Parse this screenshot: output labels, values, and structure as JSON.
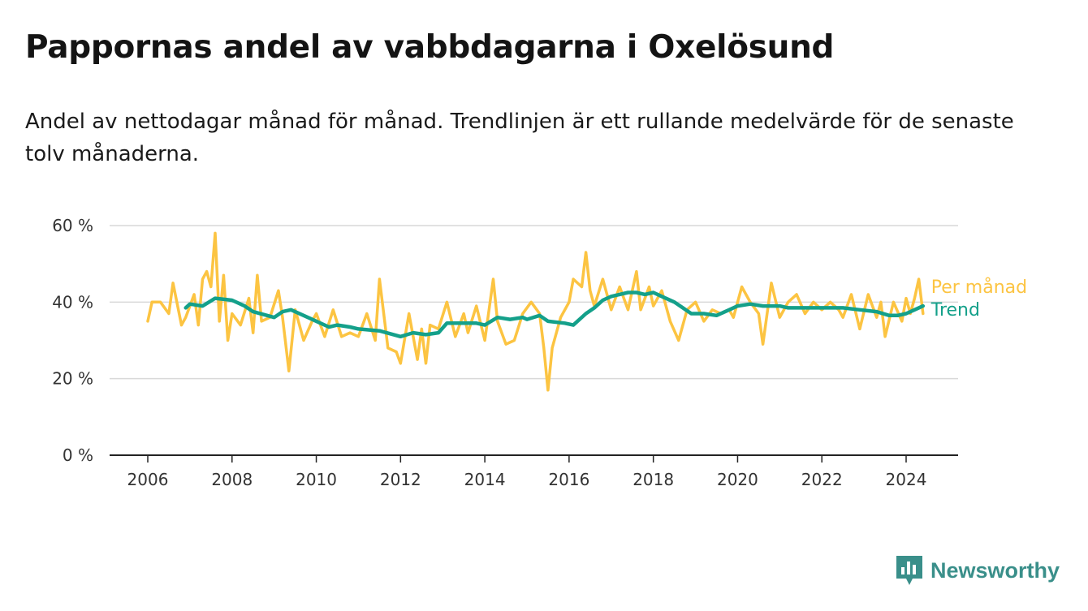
{
  "header": {
    "title": "Pappornas andel av vabbdagarna i Oxelösund",
    "subtitle": "Andel av nettodagar månad för månad. Trendlinjen är ett rullande medelvärde för de senaste tolv månaderna."
  },
  "brand": {
    "name": "Newsworthy",
    "icon": "newsworthy-logo-icon",
    "color": "#3a8f8a"
  },
  "chart_data": {
    "type": "line",
    "title": "Pappornas andel av vabbdagarna i Oxelösund",
    "subtitle": "Andel av nettodagar månad för månad. Trendlinjen är ett rullande medelvärde för de senaste tolv månaderna.",
    "xlabel": "",
    "ylabel": "",
    "xlim": [
      2005.8,
      2025.1
    ],
    "ylim": [
      0,
      60
    ],
    "y_ticks": [
      0,
      20,
      40,
      60
    ],
    "y_tick_labels": [
      "0 %",
      "20 %",
      "40 %",
      "60 %"
    ],
    "x_ticks": [
      2006,
      2008,
      2010,
      2012,
      2014,
      2016,
      2018,
      2020,
      2022,
      2024
    ],
    "x_tick_labels": [
      "2006",
      "2008",
      "2010",
      "2012",
      "2014",
      "2016",
      "2018",
      "2020",
      "2022",
      "2024"
    ],
    "grid": "horizontal",
    "legend": "direct labels at line ends",
    "series": [
      {
        "name": "Per månad",
        "color": "#fcc442",
        "x": [
          2006.0,
          2006.1,
          2006.3,
          2006.5,
          2006.6,
          2006.8,
          2006.9,
          2007.1,
          2007.2,
          2007.3,
          2007.4,
          2007.5,
          2007.6,
          2007.7,
          2007.8,
          2007.9,
          2008.0,
          2008.2,
          2008.4,
          2008.5,
          2008.6,
          2008.7,
          2008.9,
          2009.1,
          2009.2,
          2009.35,
          2009.5,
          2009.7,
          2009.9,
          2010.0,
          2010.2,
          2010.4,
          2010.6,
          2010.8,
          2011.0,
          2011.2,
          2011.4,
          2011.5,
          2011.7,
          2011.9,
          2012.0,
          2012.2,
          2012.4,
          2012.5,
          2012.6,
          2012.7,
          2012.9,
          2013.1,
          2013.3,
          2013.5,
          2013.6,
          2013.8,
          2014.0,
          2014.2,
          2014.3,
          2014.5,
          2014.7,
          2014.9,
          2015.1,
          2015.3,
          2015.4,
          2015.5,
          2015.6,
          2015.8,
          2016.0,
          2016.1,
          2016.3,
          2016.4,
          2016.5,
          2016.6,
          2016.8,
          2017.0,
          2017.2,
          2017.4,
          2017.6,
          2017.7,
          2017.9,
          2018.0,
          2018.2,
          2018.4,
          2018.6,
          2018.8,
          2019.0,
          2019.2,
          2019.4,
          2019.6,
          2019.8,
          2019.9,
          2020.1,
          2020.3,
          2020.5,
          2020.6,
          2020.8,
          2021.0,
          2021.2,
          2021.4,
          2021.6,
          2021.8,
          2022.0,
          2022.2,
          2022.4,
          2022.5,
          2022.7,
          2022.9,
          2023.1,
          2023.3,
          2023.4,
          2023.5,
          2023.7,
          2023.9,
          2024.0,
          2024.1,
          2024.2,
          2024.3,
          2024.4
        ],
        "values": [
          35,
          40,
          40,
          37,
          45,
          34,
          36,
          42,
          34,
          46,
          48,
          44,
          58,
          35,
          47,
          30,
          37,
          34,
          41,
          32,
          47,
          35,
          36,
          43,
          36,
          22,
          38,
          30,
          35,
          37,
          31,
          38,
          31,
          32,
          31,
          37,
          30,
          46,
          28,
          27,
          24,
          37,
          25,
          33,
          24,
          34,
          33,
          40,
          31,
          37,
          32,
          39,
          30,
          46,
          35,
          29,
          30,
          37,
          40,
          37,
          28,
          17,
          28,
          36,
          40,
          46,
          44,
          53,
          43,
          39,
          46,
          38,
          44,
          38,
          48,
          38,
          44,
          39,
          43,
          35,
          30,
          38,
          40,
          35,
          38,
          37,
          38,
          36,
          44,
          40,
          37,
          29,
          45,
          36,
          40,
          42,
          37,
          40,
          38,
          40,
          38,
          36,
          42,
          33,
          42,
          36,
          40,
          31,
          40,
          35,
          41,
          37,
          41,
          46,
          37
        ]
      },
      {
        "name": "Trend",
        "color": "#14a08a",
        "x": [
          2006.9,
          2007.0,
          2007.3,
          2007.6,
          2008.0,
          2008.3,
          2008.5,
          2009.0,
          2009.2,
          2009.4,
          2009.8,
          2010.0,
          2010.3,
          2010.5,
          2010.8,
          2011.0,
          2011.5,
          2012.0,
          2012.3,
          2012.6,
          2012.9,
          2013.1,
          2013.4,
          2013.8,
          2014.0,
          2014.3,
          2014.6,
          2014.9,
          2015.0,
          2015.3,
          2015.5,
          2015.9,
          2016.1,
          2016.4,
          2016.6,
          2016.8,
          2017.0,
          2017.4,
          2017.6,
          2017.8,
          2018.0,
          2018.2,
          2018.5,
          2018.7,
          2018.9,
          2019.2,
          2019.5,
          2019.8,
          2020.0,
          2020.3,
          2020.6,
          2021.0,
          2021.2,
          2021.6,
          2022.0,
          2022.5,
          2022.9,
          2023.3,
          2023.6,
          2023.8,
          2024.0,
          2024.2,
          2024.4
        ],
        "values": [
          38.5,
          39.5,
          39,
          41,
          40.5,
          39,
          37.5,
          36,
          37.5,
          38,
          36,
          35,
          33.5,
          34,
          33.5,
          33,
          32.5,
          31,
          32,
          31.5,
          32,
          34.5,
          34.5,
          34.5,
          34,
          36,
          35.5,
          36,
          35.5,
          36.5,
          35,
          34.5,
          34,
          37,
          38.5,
          40.5,
          41.5,
          42.5,
          42.5,
          42,
          42.5,
          41.5,
          40,
          38.5,
          37,
          37,
          36.5,
          38,
          39,
          39.5,
          39,
          39,
          38.5,
          38.5,
          38.5,
          38.5,
          38,
          37.5,
          36.5,
          36.5,
          37,
          38,
          39
        ]
      }
    ]
  }
}
